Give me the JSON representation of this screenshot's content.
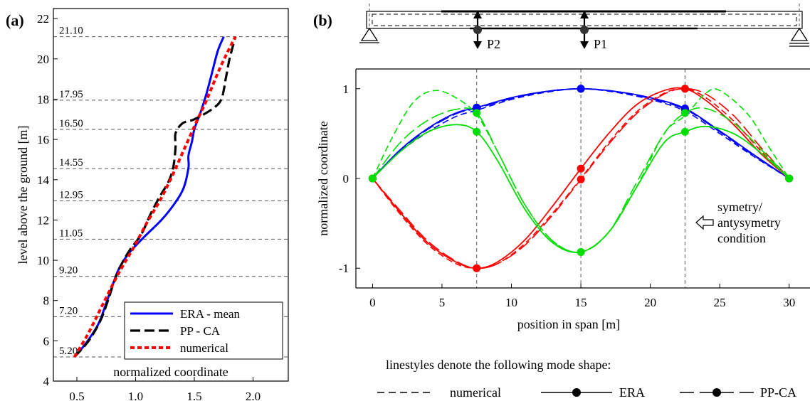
{
  "panel_a": {
    "label": "(a)",
    "ylabel": "level above the ground [m]",
    "xlabel_inside": "normalized coordinate",
    "legend": [
      "ERA - mean",
      "PP - CA",
      "numerical"
    ]
  },
  "panel_b": {
    "label": "(b)",
    "ylabel": "normalized coordinate",
    "xlabel": "position in span [m]",
    "load_labels": [
      "P2",
      "P1"
    ],
    "annotation_lines": [
      "symetry/",
      "antysymetry",
      "condition"
    ],
    "style_legend": {
      "caption": "linestyles denote the following mode shape:",
      "items": [
        "numerical",
        "ERA",
        "PP-CA"
      ]
    }
  },
  "colors": {
    "ERA": "#0000ff",
    "PP_CA": "#000000",
    "numerical_a": "#ff0000",
    "mode1": "#0000ff",
    "mode2": "#ff0000",
    "mode3": "#00dd00"
  },
  "chart_data": [
    {
      "type": "line",
      "ylabel": "level above the ground [m]",
      "xlim": [
        0.3,
        2.3
      ],
      "ylim": [
        4,
        22.5
      ],
      "x_ticks": [
        0.5,
        1.0,
        1.5,
        2.0
      ],
      "x_tick_labels": [
        "0.5",
        "1.0",
        "1.5",
        "2.0"
      ],
      "y_ticks": [
        4,
        6,
        8,
        10,
        12,
        14,
        16,
        18,
        20,
        22
      ],
      "levels": [
        5.2,
        7.2,
        9.2,
        11.05,
        12.95,
        14.55,
        16.5,
        17.95,
        21.1
      ],
      "level_labels": [
        "5.20",
        "7.20",
        "9.20",
        "11.05",
        "12.95",
        "14.55",
        "16.50",
        "17.95",
        "21.10"
      ],
      "grid": "horizontal dashed at levels",
      "legend_position": "bottom-right",
      "series": [
        {
          "name": "ERA - mean",
          "style": "solid",
          "points": [
            [
              0.48,
              5.2
            ],
            [
              0.58,
              5.9
            ],
            [
              0.68,
              6.8
            ],
            [
              0.74,
              7.7
            ],
            [
              0.8,
              8.7
            ],
            [
              0.86,
              9.6
            ],
            [
              0.95,
              10.4
            ],
            [
              1.08,
              11.2
            ],
            [
              1.22,
              12.0
            ],
            [
              1.33,
              12.8
            ],
            [
              1.41,
              13.6
            ],
            [
              1.45,
              14.6
            ],
            [
              1.45,
              15.2
            ],
            [
              1.48,
              15.9
            ],
            [
              1.5,
              16.5
            ],
            [
              1.55,
              17.3
            ],
            [
              1.6,
              18.2
            ],
            [
              1.65,
              19.3
            ],
            [
              1.7,
              20.4
            ],
            [
              1.75,
              21.1
            ]
          ]
        },
        {
          "name": "PP - CA",
          "style": "dashed",
          "points": [
            [
              0.48,
              5.2
            ],
            [
              0.6,
              6.0
            ],
            [
              0.7,
              7.0
            ],
            [
              0.77,
              8.1
            ],
            [
              0.82,
              9.0
            ],
            [
              0.88,
              9.8
            ],
            [
              0.95,
              10.5
            ],
            [
              1.05,
              11.3
            ],
            [
              1.12,
              12.2
            ],
            [
              1.2,
              13.1
            ],
            [
              1.28,
              13.9
            ],
            [
              1.32,
              14.6
            ],
            [
              1.34,
              15.6
            ],
            [
              1.34,
              16.3
            ],
            [
              1.4,
              16.8
            ],
            [
              1.5,
              17.0
            ],
            [
              1.65,
              17.5
            ],
            [
              1.73,
              18.0
            ],
            [
              1.77,
              19.1
            ],
            [
              1.8,
              20.0
            ],
            [
              1.85,
              21.1
            ]
          ]
        },
        {
          "name": "numerical",
          "style": "dotted",
          "points": [
            [
              0.48,
              5.2
            ],
            [
              0.6,
              6.4
            ],
            [
              0.72,
              7.8
            ],
            [
              0.85,
              9.3
            ],
            [
              0.98,
              10.6
            ],
            [
              1.1,
              11.9
            ],
            [
              1.22,
              13.1
            ],
            [
              1.32,
              14.3
            ],
            [
              1.42,
              15.6
            ],
            [
              1.52,
              16.9
            ],
            [
              1.6,
              17.9
            ],
            [
              1.7,
              19.3
            ],
            [
              1.78,
              20.3
            ],
            [
              1.85,
              21.1
            ]
          ]
        }
      ]
    },
    {
      "type": "line",
      "xlabel": "position in span [m]",
      "ylabel": "normalized coordinate",
      "xlim": [
        -1.2,
        31.5
      ],
      "ylim": [
        -1.22,
        1.22
      ],
      "x_ticks": [
        0,
        5,
        10,
        15,
        20,
        25,
        30
      ],
      "y_ticks": [
        -1,
        0,
        1
      ],
      "vertical_lines": [
        7.5,
        15,
        22.5
      ],
      "marker_x": [
        0,
        7.5,
        15,
        22.5,
        30
      ],
      "modes": [
        {
          "color": "#0000ff",
          "numerical": [
            [
              0,
              0
            ],
            [
              2,
              0.3
            ],
            [
              4,
              0.52
            ],
            [
              6,
              0.69
            ],
            [
              7.5,
              0.76
            ],
            [
              10,
              0.88
            ],
            [
              12.5,
              0.96
            ],
            [
              15,
              1.0
            ],
            [
              17.5,
              0.96
            ],
            [
              20,
              0.88
            ],
            [
              22.5,
              0.75
            ],
            [
              25,
              0.5
            ],
            [
              27.5,
              0.24
            ],
            [
              30,
              0
            ]
          ],
          "ERA": [
            [
              0,
              0
            ],
            [
              2,
              0.32
            ],
            [
              4,
              0.56
            ],
            [
              6,
              0.73
            ],
            [
              7.5,
              0.79
            ],
            [
              10,
              0.9
            ],
            [
              12.5,
              0.97
            ],
            [
              15,
              1.0
            ],
            [
              17.5,
              0.97
            ],
            [
              20,
              0.9
            ],
            [
              22.5,
              0.78
            ],
            [
              25,
              0.53
            ],
            [
              27.5,
              0.26
            ],
            [
              30,
              0
            ]
          ],
          "PP_CA": [
            [
              0,
              0
            ],
            [
              2,
              0.31
            ],
            [
              4,
              0.55
            ],
            [
              6,
              0.72
            ],
            [
              7.5,
              0.78
            ],
            [
              10,
              0.89
            ],
            [
              12.5,
              0.97
            ],
            [
              15,
              1.0
            ],
            [
              17.5,
              0.97
            ],
            [
              20,
              0.89
            ],
            [
              22.5,
              0.77
            ],
            [
              25,
              0.52
            ],
            [
              27.5,
              0.25
            ],
            [
              30,
              0
            ]
          ]
        },
        {
          "color": "#ff0000",
          "numerical": [
            [
              0,
              0
            ],
            [
              2,
              -0.4
            ],
            [
              4,
              -0.74
            ],
            [
              6,
              -0.95
            ],
            [
              7.5,
              -1.0
            ],
            [
              9,
              -0.95
            ],
            [
              11,
              -0.72
            ],
            [
              13,
              -0.38
            ],
            [
              15,
              0.0
            ],
            [
              17,
              0.4
            ],
            [
              19,
              0.74
            ],
            [
              21,
              0.95
            ],
            [
              22.5,
              1.0
            ],
            [
              24,
              0.9
            ],
            [
              26,
              0.64
            ],
            [
              28,
              0.3
            ],
            [
              30,
              0
            ]
          ],
          "ERA": [
            [
              0,
              0
            ],
            [
              2,
              -0.38
            ],
            [
              4,
              -0.72
            ],
            [
              6,
              -0.93
            ],
            [
              7.5,
              -1.0
            ],
            [
              9,
              -0.93
            ],
            [
              11,
              -0.68
            ],
            [
              13,
              -0.3
            ],
            [
              15,
              0.11
            ],
            [
              17,
              0.5
            ],
            [
              19,
              0.82
            ],
            [
              21,
              0.98
            ],
            [
              22.5,
              1.0
            ],
            [
              24,
              0.87
            ],
            [
              26,
              0.6
            ],
            [
              28,
              0.27
            ],
            [
              30,
              0
            ]
          ],
          "PP_CA": [
            [
              0,
              0
            ],
            [
              2,
              -0.36
            ],
            [
              4,
              -0.7
            ],
            [
              6,
              -0.92
            ],
            [
              7.5,
              -1.0
            ],
            [
              9,
              -0.95
            ],
            [
              11,
              -0.74
            ],
            [
              13,
              -0.4
            ],
            [
              15,
              -0.01
            ],
            [
              17,
              0.38
            ],
            [
              19,
              0.72
            ],
            [
              21,
              0.94
            ],
            [
              22.5,
              1.0
            ],
            [
              24,
              0.94
            ],
            [
              26,
              0.7
            ],
            [
              28,
              0.34
            ],
            [
              30,
              0
            ]
          ]
        },
        {
          "color": "#00dd00",
          "numerical": [
            [
              0,
              0
            ],
            [
              1.5,
              0.48
            ],
            [
              3,
              0.86
            ],
            [
              4.5,
              0.98
            ],
            [
              6,
              0.9
            ],
            [
              7.5,
              0.71
            ],
            [
              9,
              0.3
            ],
            [
              11,
              -0.3
            ],
            [
              13,
              -0.7
            ],
            [
              15,
              -0.82
            ],
            [
              17,
              -0.6
            ],
            [
              19,
              -0.1
            ],
            [
              21,
              0.5
            ],
            [
              22.5,
              0.7
            ],
            [
              24,
              0.95
            ],
            [
              25,
              0.98
            ],
            [
              27,
              0.72
            ],
            [
              28.5,
              0.36
            ],
            [
              30,
              0
            ]
          ],
          "ERA": [
            [
              0,
              0
            ],
            [
              2,
              0.3
            ],
            [
              4,
              0.52
            ],
            [
              6,
              0.6
            ],
            [
              7.5,
              0.52
            ],
            [
              9,
              0.2
            ],
            [
              11,
              -0.35
            ],
            [
              13,
              -0.72
            ],
            [
              15,
              -0.82
            ],
            [
              17,
              -0.6
            ],
            [
              19,
              -0.1
            ],
            [
              21,
              0.4
            ],
            [
              22.5,
              0.52
            ],
            [
              24,
              0.58
            ],
            [
              26,
              0.5
            ],
            [
              28,
              0.28
            ],
            [
              30,
              0
            ]
          ],
          "PP_CA": [
            [
              0,
              0
            ],
            [
              2,
              0.4
            ],
            [
              4,
              0.65
            ],
            [
              6,
              0.77
            ],
            [
              7.5,
              0.73
            ],
            [
              9,
              0.3
            ],
            [
              11,
              -0.3
            ],
            [
              13,
              -0.7
            ],
            [
              15,
              -0.82
            ],
            [
              17,
              -0.6
            ],
            [
              19,
              -0.05
            ],
            [
              21,
              0.5
            ],
            [
              22.5,
              0.73
            ],
            [
              24,
              0.78
            ],
            [
              26,
              0.62
            ],
            [
              28,
              0.32
            ],
            [
              30,
              0
            ]
          ]
        }
      ]
    }
  ]
}
